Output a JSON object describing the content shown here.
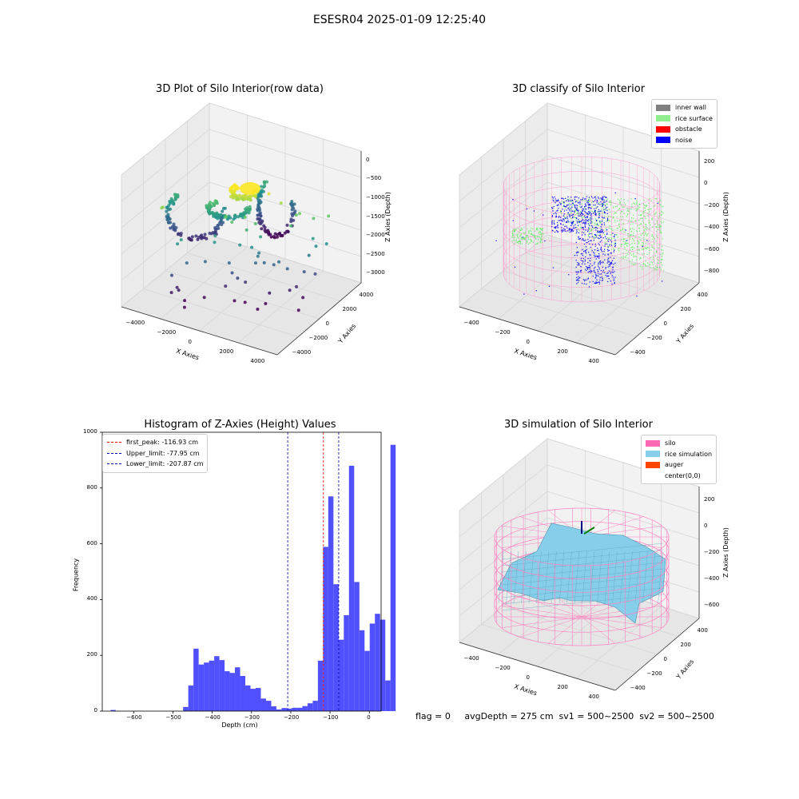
{
  "suptitle": "ESESR04 2025-01-09 12:25:40",
  "panel1": {
    "title": "3D Plot of Silo Interior(row data)",
    "xlabel": "X Axies",
    "ylabel": "Y Axies",
    "zlabel": "Z Axies (Depth)",
    "xticks": [
      "−4000",
      "−2000",
      "0",
      "2000",
      "4000"
    ],
    "yticks": [
      "4000",
      "2000",
      "0",
      "−2000",
      "−4000"
    ],
    "zticks": [
      "0",
      "−500",
      "−1000",
      "−1500",
      "−2000",
      "−2500",
      "−3000"
    ]
  },
  "panel2": {
    "title": "3D classify of Silo Interior",
    "xlabel": "X Axies",
    "ylabel": "Y Axies",
    "zlabel": "Z Axies (Depth)",
    "xticks": [
      "−400",
      "−200",
      "0",
      "200",
      "400"
    ],
    "yticks": [
      "400",
      "200",
      "0",
      "−200",
      "−400"
    ],
    "zticks": [
      "200",
      "0",
      "−200",
      "−400",
      "−600",
      "−800"
    ],
    "legend": [
      {
        "label": "inner wall",
        "color": "#808080"
      },
      {
        "label": "rice surface",
        "color": "#90ee90"
      },
      {
        "label": "obstacle",
        "color": "#ff0000"
      },
      {
        "label": "noise",
        "color": "#0000ff"
      }
    ]
  },
  "panel4": {
    "title": "3D simulation of Silo Interior",
    "xlabel": "X Axies",
    "ylabel": "Y Axies",
    "zlabel": "Z Axies (Depth)",
    "xticks": [
      "−400",
      "−200",
      "0",
      "200",
      "400"
    ],
    "yticks": [
      "400",
      "200",
      "0",
      "−200",
      "−400"
    ],
    "zticks": [
      "200",
      "0",
      "−200",
      "−400",
      "−600"
    ],
    "legend": [
      {
        "label": "silo",
        "color": "#ff69b4"
      },
      {
        "label": "rice simulation",
        "color": "#87ceeb"
      },
      {
        "label": "auger",
        "color": "#ff4500"
      },
      {
        "label": "center(0,0)",
        "color": ""
      }
    ]
  },
  "footer": "flag = 0     avgDepth = 275 cm  sv1 = 500~2500  sv2 = 500~2500",
  "chart_data": [
    {
      "type": "bar",
      "title": "Histogram of Z-Axies (Height) Values",
      "xlabel": "Depth (cm)",
      "ylabel": "Frequency",
      "xlim": [
        -680,
        30
      ],
      "ylim": [
        0,
        1000
      ],
      "xticks": [
        -600,
        -500,
        -400,
        -300,
        -200,
        -100,
        0
      ],
      "yticks": [
        0,
        200,
        400,
        600,
        800,
        1000
      ],
      "bin_width": 13.2,
      "bin_start": -659,
      "values": [
        4,
        0,
        0,
        0,
        0,
        0,
        0,
        0,
        0,
        0,
        0,
        0,
        0,
        0,
        15,
        92,
        224,
        167,
        174,
        181,
        197,
        183,
        143,
        137,
        157,
        126,
        92,
        80,
        83,
        45,
        37,
        17,
        6,
        11,
        9,
        12,
        12,
        18,
        28,
        37,
        181,
        589,
        770,
        455,
        256,
        344,
        880,
        463,
        290,
        216,
        314,
        349,
        328,
        110,
        955
      ],
      "lines": [
        {
          "label": "first_peak: -116.93 cm",
          "x": -116.93,
          "color": "#ff0000"
        },
        {
          "label": "Upper_limit: -77.95 cm",
          "x": -77.95,
          "color": "#0000aa"
        },
        {
          "label": "Lower_limit: -207.87 cm",
          "x": -207.87,
          "color": "#0000aa"
        }
      ],
      "bar_color": "#5050ff",
      "legend_position": "upper-left"
    }
  ]
}
